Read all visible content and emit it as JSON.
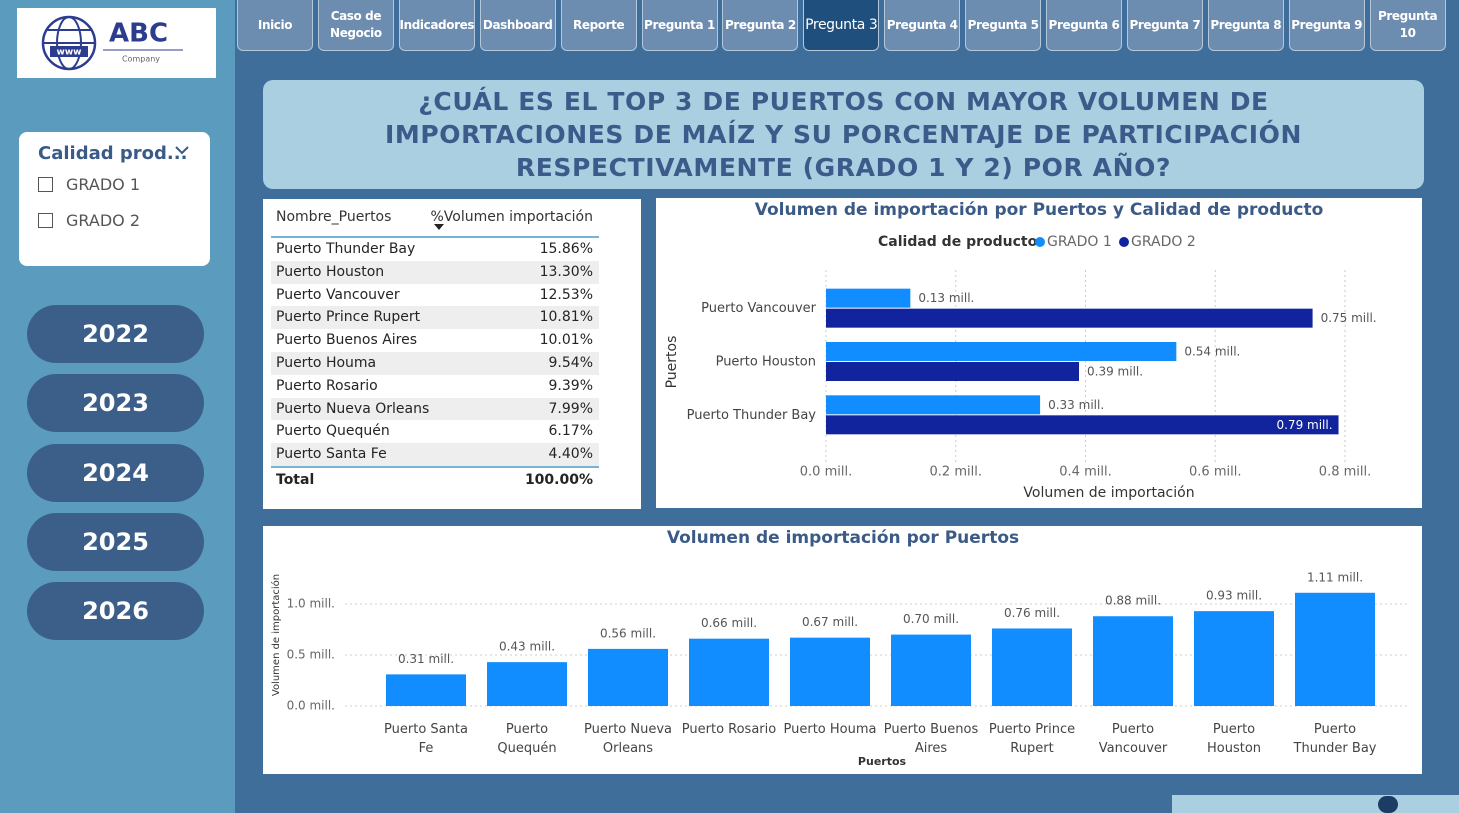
{
  "logo": {
    "name": "ABC",
    "tagline": "Company",
    "icon_text": "www"
  },
  "nav": {
    "items": [
      "Inicio",
      "Caso de Negocio",
      "Indicadores",
      "Dashboard",
      "Reporte",
      "Pregunta 1",
      "Pregunta 2",
      "Pregunta 3",
      "Pregunta 4",
      "Pregunta 5",
      "Pregunta 6",
      "Pregunta 7",
      "Pregunta 8",
      "Pregunta 9",
      "Pregunta 10"
    ],
    "active": 7
  },
  "title": "¿CUÁL ES EL TOP 3 DE PUERTOS CON MAYOR VOLUMEN DE IMPORTACIONES DE MAÍZ Y SU PORCENTAJE DE PARTICIPACIÓN RESPECTIVAMENTE (GRADO 1 Y 2) POR AÑO?",
  "slicer": {
    "title": "Calidad prod...",
    "options": [
      "GRADO 1",
      "GRADO 2"
    ]
  },
  "years": [
    "2022",
    "2023",
    "2024",
    "2025",
    "2026"
  ],
  "table": {
    "columns": [
      "Nombre_Puertos",
      "%Volumen importación"
    ],
    "rows": [
      [
        "Puerto Thunder Bay",
        "15.86%"
      ],
      [
        "Puerto Houston",
        "13.30%"
      ],
      [
        "Puerto Vancouver",
        "12.53%"
      ],
      [
        "Puerto Prince Rupert",
        "10.81%"
      ],
      [
        "Puerto Buenos Aires",
        "10.01%"
      ],
      [
        "Puerto Houma",
        "9.54%"
      ],
      [
        "Puerto Rosario",
        "9.39%"
      ],
      [
        "Puerto Nueva Orleans",
        "7.99%"
      ],
      [
        "Puerto Quequén",
        "6.17%"
      ],
      [
        "Puerto Santa Fe",
        "4.40%"
      ]
    ],
    "total": [
      "Total",
      "100.00%"
    ]
  },
  "chart_data": [
    {
      "type": "barh",
      "title": "Volumen de importación por Puertos y Calidad de producto",
      "legend_title": "Calidad de producto",
      "legend": "top",
      "xlabel": "Volumen de importación",
      "ylabel": "Puertos",
      "categories": [
        "Puerto Vancouver",
        "Puerto Houston",
        "Puerto Thunder Bay"
      ],
      "series": [
        {
          "name": "GRADO 1",
          "color": "#118DFF",
          "values": [
            0.13,
            0.54,
            0.33
          ],
          "value_labels": [
            "0.13 mill.",
            "0.54 mill.",
            "0.33 mill."
          ]
        },
        {
          "name": "GRADO 2",
          "color": "#12239E",
          "values": [
            0.75,
            0.39,
            0.79
          ],
          "value_labels": [
            "0.75 mill.",
            "0.39 mill.",
            "0.79 mill."
          ]
        }
      ],
      "xlim": [
        0,
        0.82
      ],
      "xticks": [
        {
          "value": 0,
          "label": "0.0 mill."
        },
        {
          "value": 0.2,
          "label": "0.2 mill."
        },
        {
          "value": 0.4,
          "label": "0.4 mill."
        },
        {
          "value": 0.6,
          "label": "0.6 mill."
        },
        {
          "value": 0.8,
          "label": "0.8 mill."
        }
      ],
      "grid": true
    },
    {
      "type": "bar",
      "title": "Volumen de importación por Puertos",
      "xlabel": "Puertos",
      "ylabel": "Volumen de importación",
      "categories": [
        "Puerto Santa Fe",
        "Puerto Quequén",
        "Puerto Nueva Orleans",
        "Puerto Rosario",
        "Puerto Houma",
        "Puerto Buenos Aires",
        "Puerto Prince Rupert",
        "Puerto Vancouver",
        "Puerto Houston",
        "Puerto Thunder Bay"
      ],
      "color": "#118DFF",
      "values": [
        0.31,
        0.43,
        0.56,
        0.66,
        0.67,
        0.7,
        0.76,
        0.88,
        0.93,
        1.11
      ],
      "value_labels": [
        "0.31 mill.",
        "0.43 mill.",
        "0.56 mill.",
        "0.66 mill.",
        "0.67 mill.",
        "0.70 mill.",
        "0.76 mill.",
        "0.88 mill.",
        "0.93 mill.",
        "1.11 mill."
      ],
      "ylim": [
        0,
        1.15
      ],
      "yticks": [
        {
          "value": 0,
          "label": "0.0 mill."
        },
        {
          "value": 0.5,
          "label": "0.5 mill."
        },
        {
          "value": 1,
          "label": "1.0 mill."
        }
      ],
      "grid": true
    }
  ]
}
